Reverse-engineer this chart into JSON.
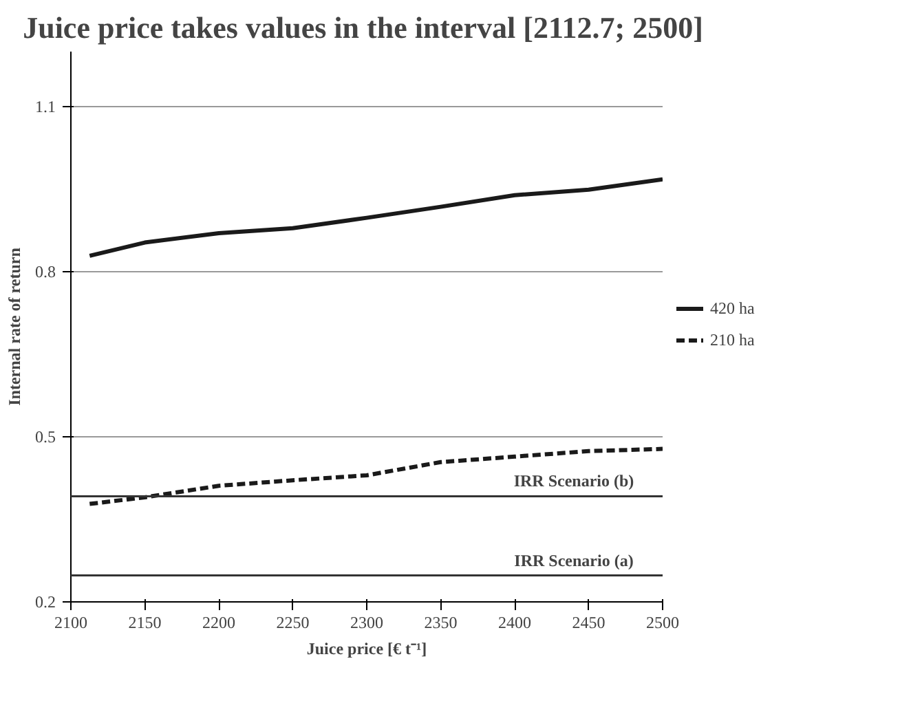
{
  "chart_data": {
    "type": "line",
    "title": "Juice price takes values in the interval  [2112.7; 2500]",
    "xlabel": "Juice price [€ t⁻¹]",
    "ylabel": "Internal rate of return",
    "x": [
      2112.7,
      2150,
      2200,
      2250,
      2300,
      2350,
      2400,
      2450,
      2500
    ],
    "series": [
      {
        "name": "420 ha",
        "color": "#1a1a1a",
        "line_style": "solid",
        "values": [
          0.829,
          0.853,
          0.87,
          0.879,
          0.898,
          0.918,
          0.939,
          0.949,
          0.968
        ]
      },
      {
        "name": "210 ha",
        "color": "#1a1a1a",
        "line_style": "dashed",
        "values": [
          0.378,
          0.39,
          0.411,
          0.421,
          0.43,
          0.454,
          0.464,
          0.474,
          0.478
        ]
      }
    ],
    "xlim": [
      2100,
      2500
    ],
    "xticks": [
      2100,
      2150,
      2200,
      2250,
      2300,
      2350,
      2400,
      2450,
      2500
    ],
    "ylim": [
      0.2,
      1.2
    ],
    "yticks": [
      0.2,
      0.5,
      0.8,
      1.1
    ],
    "grid": "y",
    "legend": "right",
    "ref_lines": [
      {
        "axis": "y",
        "value": 0.392,
        "label": "IRR Scenario (b)",
        "color": "#333333"
      },
      {
        "axis": "y",
        "value": 0.248,
        "label": "IRR Scenario (a)",
        "color": "#333333"
      }
    ]
  }
}
